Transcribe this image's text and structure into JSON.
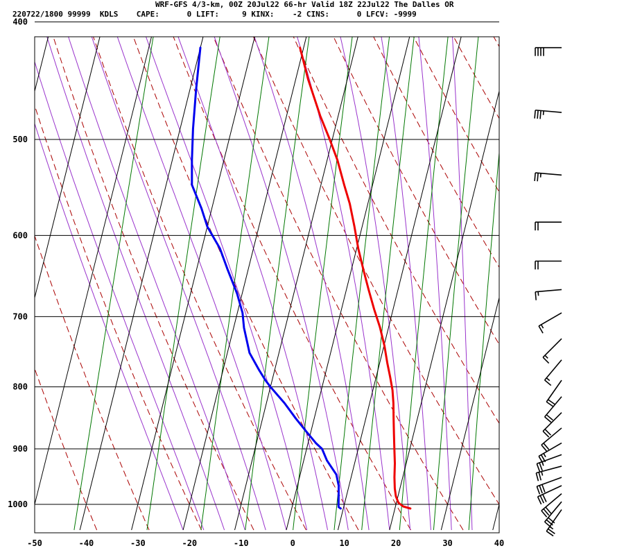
{
  "header": {
    "title": "WRF-GFS 4/3-km, 00Z 20Jul22 66-hr Valid 18Z 22Jul22 The Dalles OR",
    "info": "220722/1800 99999  KDLS    CAPE:      0 LIFT:     9 KINX:    -2 CINS:      0 LFCV: -9999"
  },
  "chart_data": {
    "type": "line",
    "subtype": "skew-t log-p sounding",
    "x_ticks": [
      -50,
      -40,
      -30,
      -20,
      -10,
      0,
      10,
      20,
      30,
      40
    ],
    "y_ticks": [
      400,
      500,
      600,
      700,
      800,
      900,
      1000
    ],
    "xlim": [
      -50,
      40
    ],
    "ylim": [
      1040,
      400
    ],
    "y_scale": "log",
    "grid": true,
    "series": [
      {
        "color": "#ee0000",
        "points": [
          [
            -20.7,
            420
          ],
          [
            -17.6,
            446
          ],
          [
            -13.5,
            478
          ],
          [
            -10.5,
            500
          ],
          [
            -8.0,
            520
          ],
          [
            -5.5,
            545
          ],
          [
            -3.5,
            565
          ],
          [
            -1.5,
            590
          ],
          [
            0.3,
            615
          ],
          [
            2.3,
            640
          ],
          [
            4.3,
            665
          ],
          [
            6.3,
            690
          ],
          [
            8.3,
            714
          ],
          [
            10.1,
            740
          ],
          [
            11.5,
            765
          ],
          [
            12.7,
            785
          ],
          [
            13.8,
            805
          ],
          [
            14.6,
            825
          ],
          [
            15.4,
            850
          ],
          [
            16.2,
            875
          ],
          [
            17.0,
            900
          ],
          [
            17.8,
            925
          ],
          [
            18.4,
            950
          ],
          [
            19.0,
            970
          ],
          [
            19.6,
            985
          ],
          [
            20.4,
            997
          ],
          [
            21.5,
            1004
          ],
          [
            23.0,
            1008
          ]
        ]
      },
      {
        "color": "#0000ee",
        "points": [
          [
            -40.0,
            420
          ],
          [
            -38.8,
            455
          ],
          [
            -37.5,
            490
          ],
          [
            -36.2,
            520
          ],
          [
            -35.0,
            545
          ],
          [
            -32.0,
            570
          ],
          [
            -30.0,
            590
          ],
          [
            -26.5,
            615
          ],
          [
            -24.0,
            640
          ],
          [
            -21.0,
            670
          ],
          [
            -19.0,
            695
          ],
          [
            -18.0,
            715
          ],
          [
            -15.7,
            750
          ],
          [
            -13.0,
            775
          ],
          [
            -11.3,
            790
          ],
          [
            -10.0,
            800
          ],
          [
            -6.5,
            825
          ],
          [
            -3.5,
            850
          ],
          [
            -1.0,
            870
          ],
          [
            1.5,
            890
          ],
          [
            3.0,
            900
          ],
          [
            4.5,
            920
          ],
          [
            7.0,
            945
          ],
          [
            8.0,
            965
          ],
          [
            8.5,
            985
          ],
          [
            9.0,
            1005
          ],
          [
            9.5,
            1008
          ]
        ]
      }
    ],
    "wind_barbs": [
      {
        "pressure": 420,
        "direction": 270,
        "speed": 40
      },
      {
        "pressure": 475,
        "direction": 275,
        "speed": 35
      },
      {
        "pressure": 535,
        "direction": 275,
        "speed": 25
      },
      {
        "pressure": 585,
        "direction": 270,
        "speed": 20
      },
      {
        "pressure": 630,
        "direction": 270,
        "speed": 20
      },
      {
        "pressure": 665,
        "direction": 265,
        "speed": 15
      },
      {
        "pressure": 695,
        "direction": 240,
        "speed": 15
      },
      {
        "pressure": 730,
        "direction": 225,
        "speed": 15
      },
      {
        "pressure": 760,
        "direction": 220,
        "speed": 15
      },
      {
        "pressure": 790,
        "direction": 215,
        "speed": 20
      },
      {
        "pressure": 815,
        "direction": 220,
        "speed": 20
      },
      {
        "pressure": 840,
        "direction": 225,
        "speed": 20
      },
      {
        "pressure": 865,
        "direction": 230,
        "speed": 20
      },
      {
        "pressure": 890,
        "direction": 240,
        "speed": 25
      },
      {
        "pressure": 910,
        "direction": 250,
        "speed": 25
      },
      {
        "pressure": 930,
        "direction": 255,
        "speed": 25
      },
      {
        "pressure": 950,
        "direction": 250,
        "speed": 30
      },
      {
        "pressure": 965,
        "direction": 245,
        "speed": 30
      },
      {
        "pressure": 980,
        "direction": 230,
        "speed": 30
      },
      {
        "pressure": 995,
        "direction": 220,
        "speed": 30
      },
      {
        "pressure": 1010,
        "direction": 215,
        "speed": 25
      }
    ],
    "background_lines": {
      "isotherm_color": "#000000",
      "dry_adiabat_color": "#aa0000",
      "moist_adiabat_color": "#9933cc",
      "mixing_ratio_color": "#007700"
    }
  }
}
